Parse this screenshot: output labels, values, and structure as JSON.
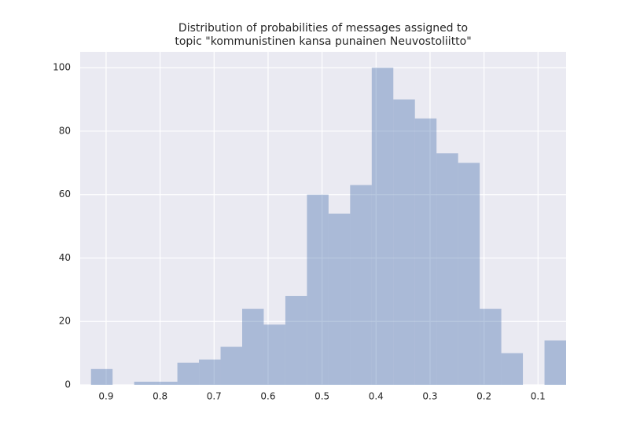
{
  "chart_data": {
    "type": "histogram",
    "title": "Distribution of probabilities of messages assigned to\ntopic \"kommunistinen kansa punainen Neuvostoliitto\"",
    "bins": [
      0.928,
      0.888,
      0.848,
      0.808,
      0.768,
      0.728,
      0.688,
      0.648,
      0.608,
      0.568,
      0.528,
      0.488,
      0.448,
      0.408,
      0.368,
      0.328,
      0.288,
      0.248,
      0.208,
      0.168,
      0.128,
      0.088,
      0.048
    ],
    "values": [
      5,
      0,
      1,
      1,
      7,
      8,
      12,
      24,
      19,
      28,
      60,
      54,
      63,
      100,
      90,
      84,
      73,
      70,
      24,
      10,
      0,
      14
    ],
    "color": "#4c72b0",
    "xlim": [
      0.948,
      0.048
    ],
    "xticks": [
      0.9,
      0.8,
      0.7,
      0.6,
      0.5,
      0.4,
      0.3,
      0.2,
      0.1
    ],
    "ylim": [
      0,
      105
    ],
    "yticks": [
      0,
      20,
      40,
      60,
      80,
      100
    ],
    "grid": true
  }
}
